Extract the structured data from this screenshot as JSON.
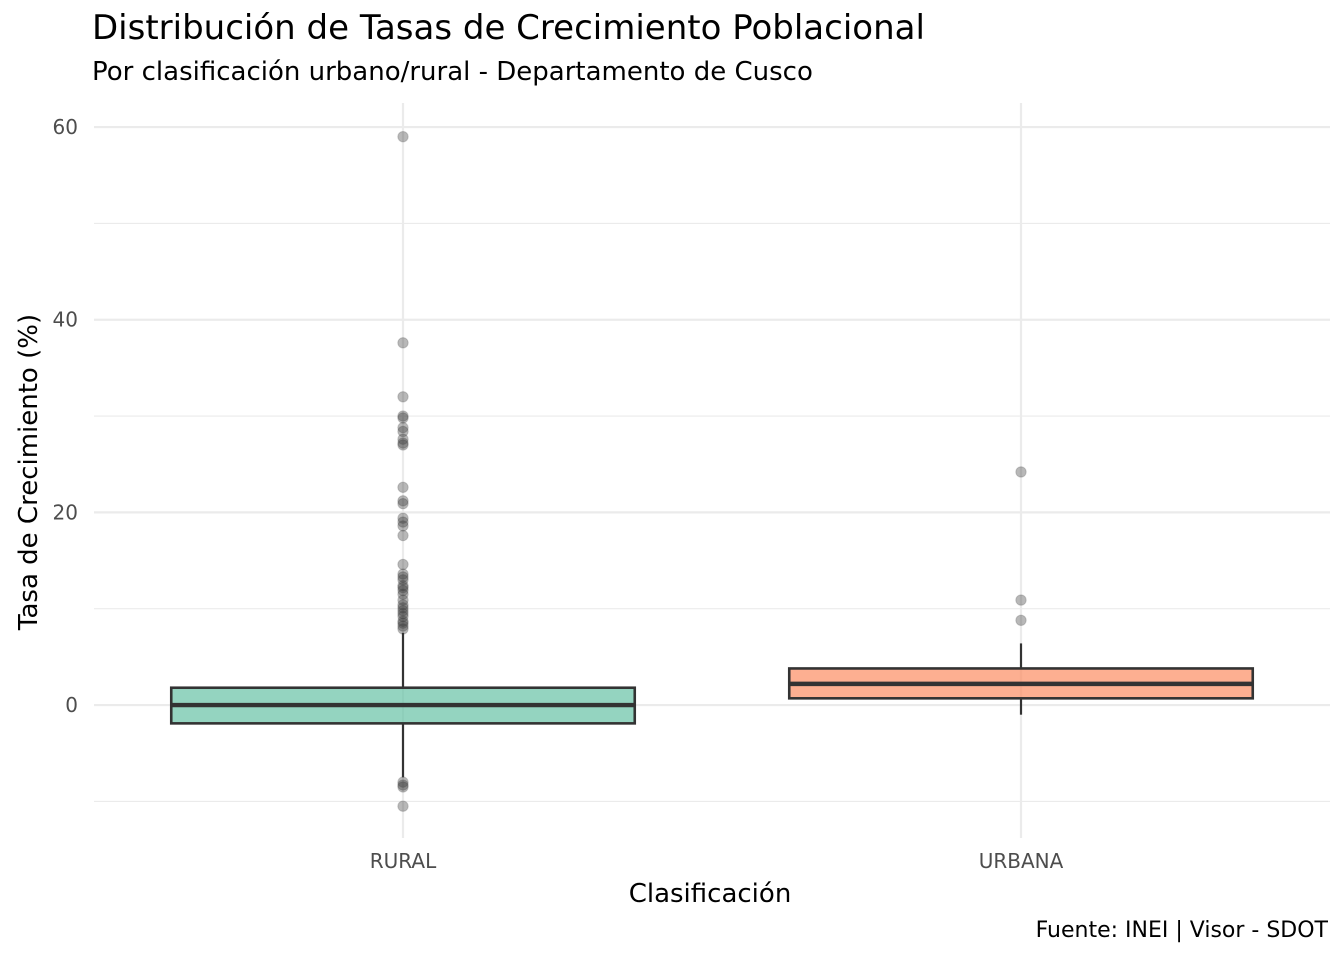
{
  "chart_data": {
    "type": "boxplot",
    "title": "Distribución de Tasas de Crecimiento Poblacional",
    "subtitle": "Por clasificación urbano/rural - Departamento de Cusco",
    "caption": "Fuente: INEI | Visor - SDOT",
    "xlabel": "Clasificación",
    "ylabel": "Tasa de Crecimiento (%)",
    "ylim": [
      -13.8,
      62.5
    ],
    "y_ticks": [
      0,
      20,
      40,
      60
    ],
    "grid": true,
    "categories": [
      "RURAL",
      "URBANA"
    ],
    "boxes": [
      {
        "category": "RURAL",
        "color": "#66c2a5",
        "whisker_low": -7.5,
        "q1": -1.9,
        "median": 0.0,
        "q3": 1.8,
        "whisker_high": 7.5,
        "outliers": [
          59.0,
          37.6,
          32.0,
          30.0,
          29.8,
          28.8,
          28.4,
          27.6,
          27.2,
          27.0,
          22.6,
          21.2,
          20.9,
          19.4,
          19.0,
          18.6,
          17.6,
          14.6,
          13.6,
          13.3,
          13.0,
          12.4,
          12.2,
          11.9,
          11.5,
          10.9,
          10.4,
          10.1,
          9.8,
          9.5,
          9.2,
          8.7,
          8.5,
          8.2,
          7.9,
          -8.0,
          -8.3,
          -8.5,
          -10.5
        ]
      },
      {
        "category": "URBANA",
        "color": "#fc8d62",
        "whisker_low": -1.0,
        "q1": 0.7,
        "median": 2.2,
        "q3": 3.8,
        "whisker_high": 6.4,
        "outliers": [
          24.2,
          10.9,
          8.8
        ]
      }
    ]
  }
}
